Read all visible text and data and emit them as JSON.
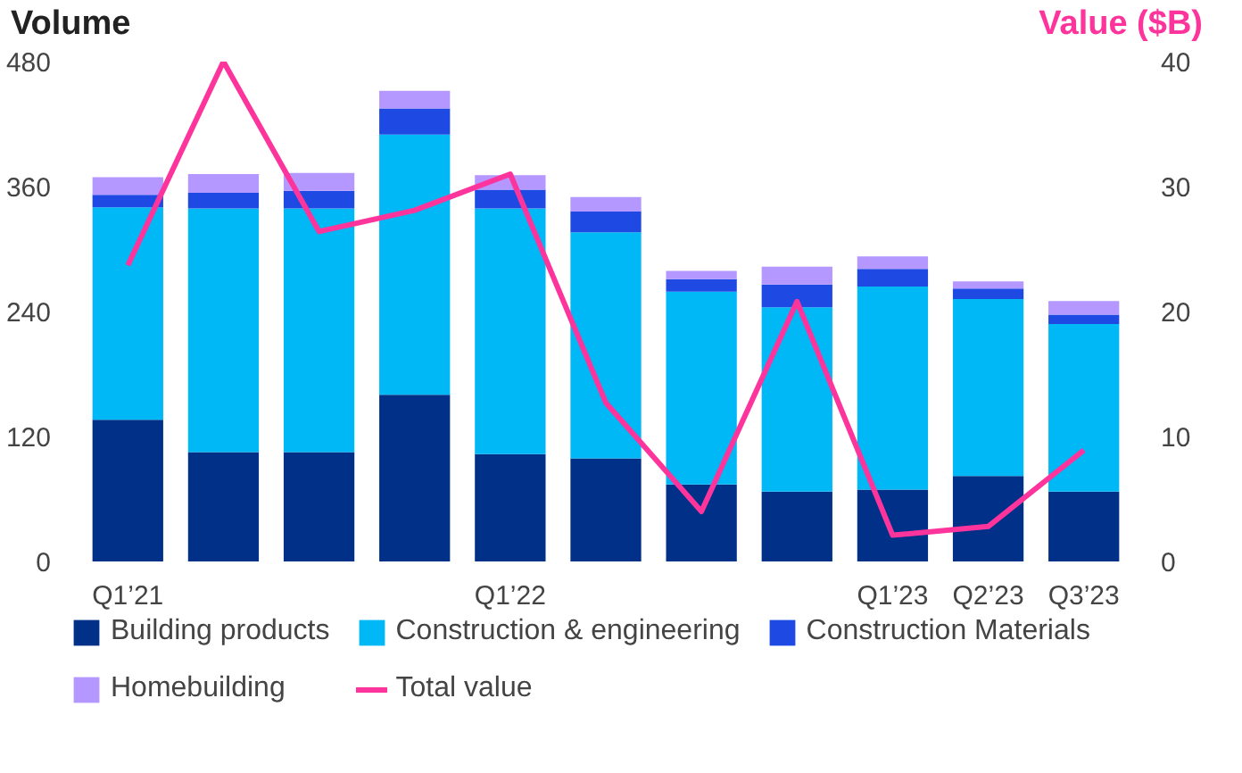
{
  "chart_data": {
    "type": "bar",
    "stacked": true,
    "ylabel": "Volume",
    "y2label": "Value ($B)",
    "categories": [
      "Q1’21",
      null,
      null,
      null,
      "Q1’22",
      null,
      null,
      null,
      "Q1’23",
      "Q2’23",
      "Q3’23"
    ],
    "series": [
      {
        "name": "Building products",
        "color": "#003087",
        "values": [
          136,
          105,
          105,
          160,
          103,
          99,
          74,
          67,
          69,
          82,
          67
        ]
      },
      {
        "name": "Construction & engineering",
        "color": "#00b8f5",
        "values": [
          204,
          234,
          234,
          250,
          236,
          217,
          185,
          177,
          195,
          170,
          161
        ]
      },
      {
        "name": "Construction Materials",
        "color": "#1e49e2",
        "values": [
          12,
          15,
          17,
          25,
          18,
          20,
          12,
          22,
          17,
          10,
          9
        ]
      },
      {
        "name": "Homebuilding",
        "color": "#b497ff",
        "values": [
          17,
          18,
          17,
          17,
          14,
          14,
          8,
          17,
          12,
          7,
          13
        ]
      },
      {
        "name": "Total value",
        "type": "line",
        "axis": "y2",
        "color": "#fd349c",
        "values": [
          23.7,
          40,
          26.4,
          28.1,
          31,
          12.7,
          4,
          20.8,
          2.1,
          2.8,
          8.9
        ]
      }
    ],
    "ylim": [
      0,
      480
    ],
    "yticks": [
      0,
      120,
      240,
      360,
      480
    ],
    "y2lim": [
      0,
      40
    ],
    "y2ticks": [
      0,
      10,
      20,
      30,
      40
    ],
    "grid": false,
    "legend": "bottom"
  }
}
